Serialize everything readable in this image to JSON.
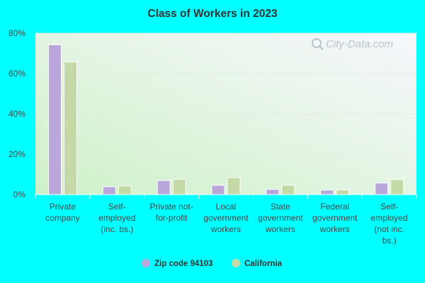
{
  "chart_data": {
    "type": "bar",
    "title": "Class of Workers in 2023",
    "xlabel": "",
    "ylabel": "",
    "ylim": [
      0,
      80
    ],
    "yticks": [
      0,
      20,
      40,
      60,
      80
    ],
    "ytick_labels": [
      "0%",
      "20%",
      "40%",
      "60%",
      "80%"
    ],
    "grid": true,
    "legend_position": "bottom",
    "categories": [
      [
        "Private",
        "company"
      ],
      [
        "Self-",
        "employed",
        "(inc. bs.)"
      ],
      [
        "Private not-",
        "for-profit"
      ],
      [
        "Local",
        "government",
        "workers"
      ],
      [
        "State",
        "government",
        "workers"
      ],
      [
        "Federal",
        "government",
        "workers"
      ],
      [
        "Self-",
        "employed",
        "(not inc.",
        "bs.)"
      ]
    ],
    "series": [
      {
        "name": "Zip code 94103",
        "color": "#b9a7db",
        "values": [
          74.3,
          3.9,
          7.0,
          4.6,
          2.6,
          2.2,
          5.7
        ]
      },
      {
        "name": "California",
        "color": "#c5d9a6",
        "values": [
          65.7,
          4.3,
          7.6,
          8.4,
          4.6,
          2.3,
          7.4
        ]
      }
    ]
  },
  "watermark": {
    "text": "City-Data.com",
    "icon": "magnifier-icon"
  },
  "colors": {
    "background": "#00ffff"
  }
}
